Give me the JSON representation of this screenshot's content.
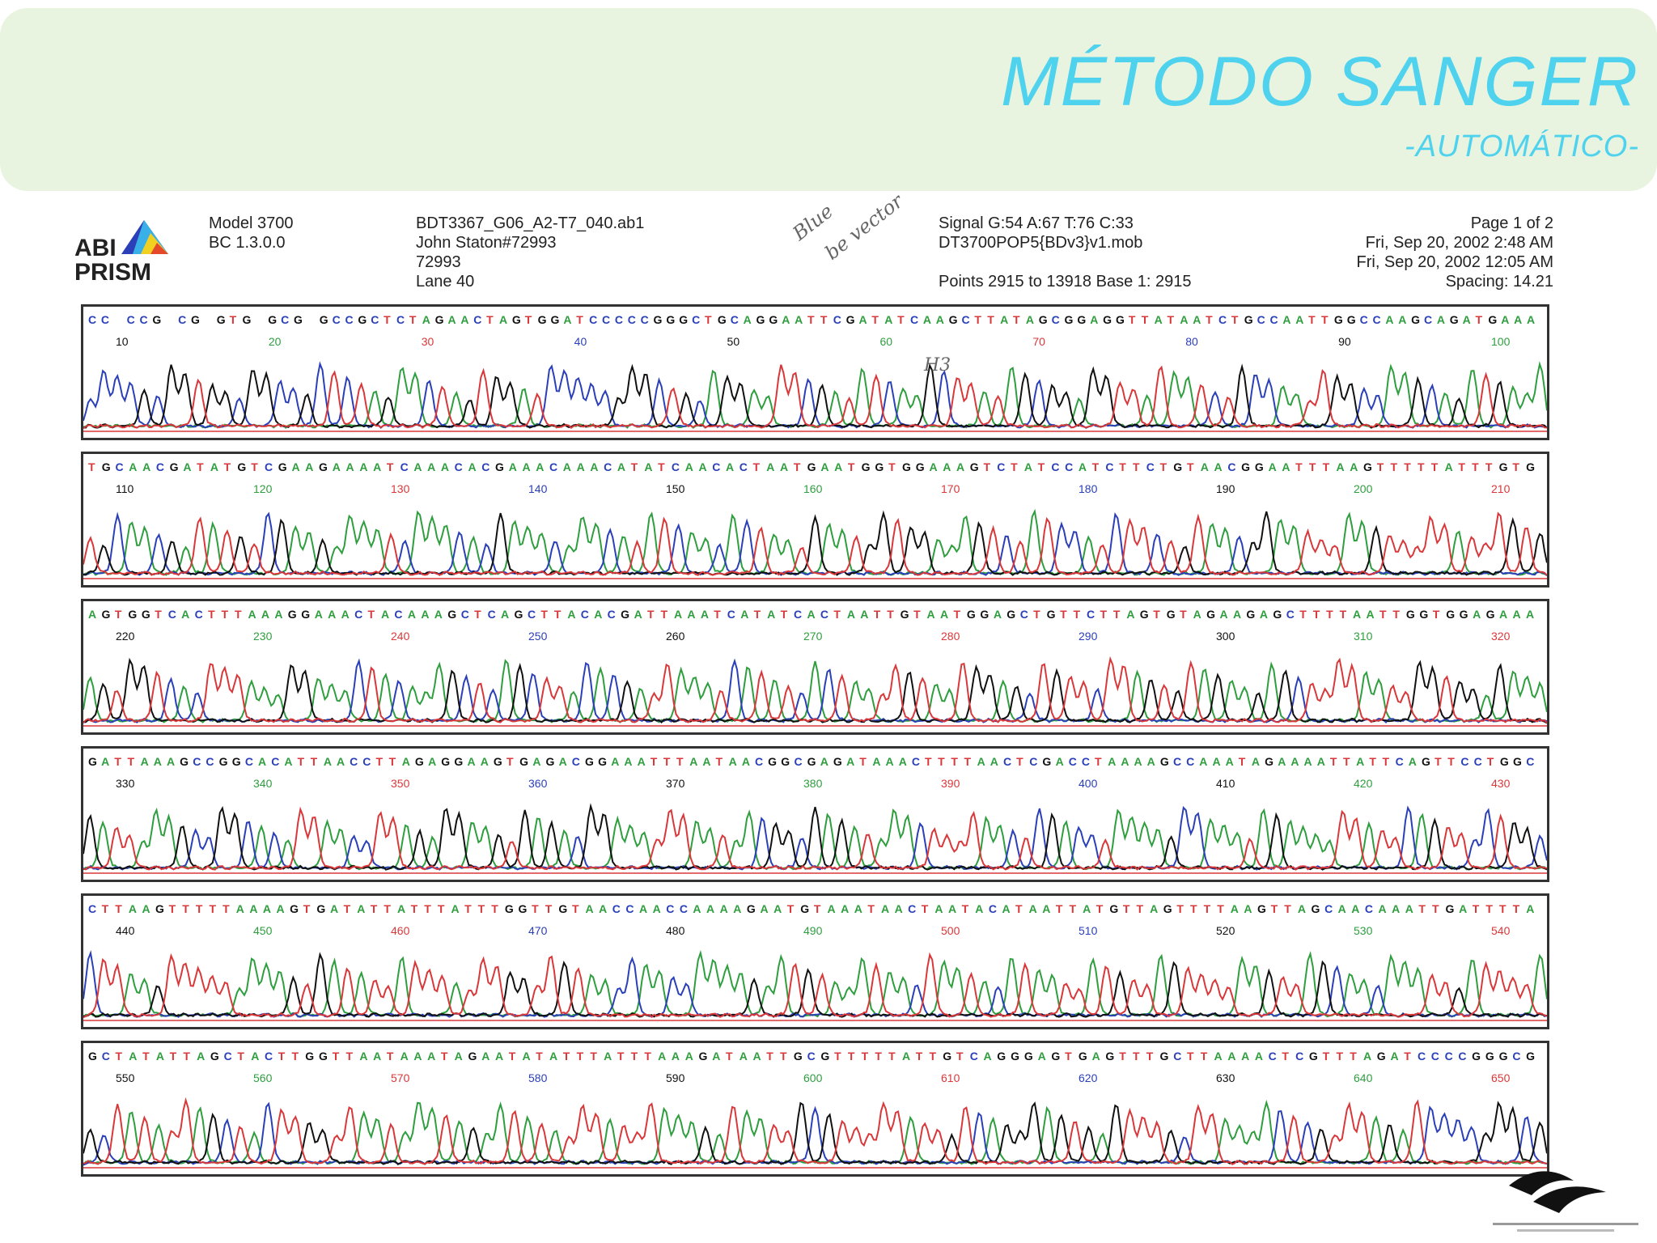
{
  "slide": {
    "title": "MÉTODO SANGER",
    "subtitle": "-AUTOMÁTICO-"
  },
  "report_header": {
    "logo_text": [
      "ABI",
      "PRISM"
    ],
    "instrument": [
      "Model 3700",
      "BC 1.3.0.0"
    ],
    "sample": [
      "BDT3367_G06_A2-T7_040.ab1",
      "John Staton#72993",
      "72993",
      "Lane 40"
    ],
    "signal": [
      "Signal G:54 A:67 T:76 C:33",
      "DT3700POP5{BDv3}v1.mob"
    ],
    "points": "Points 2915 to 13918   Base 1: 2915",
    "page_info": [
      "Page 1 of 2",
      "Fri, Sep 20, 2002  2:48 AM",
      "Fri, Sep 20, 2002  12:05 AM",
      "Spacing: 14.21"
    ],
    "annotation": [
      "Blue",
      "be vector"
    ],
    "annotation_mark": "H3"
  },
  "colors": {
    "A": "#2e9e3e",
    "C": "#2a3fb8",
    "G": "#111111",
    "T": "#d9383a",
    "title": "#4fd2ee",
    "banner": "#e8f4df"
  },
  "panels": [
    {
      "sequence": "CC CCG CG GTG GCG GCCGCTCTAGAACTAGTGGATCCCCCGGGCTGCAGGAATTCGATATCAAGCTTATAGCGGAGGTTATAATCTGCCAATTGGCCAAGCAGATGAAA",
      "ticks": [
        "10",
        "20",
        "30",
        "40",
        "50",
        "60",
        "70",
        "80",
        "90",
        "100"
      ]
    },
    {
      "sequence": "TGCAACGATATGTCGAAGAAAATCAAACACGAAACAAACATATCAACACTAATGAATGGTGGAAAGTCTATCCATCTTCTGTAACGGAATTTAAGTTTTTATTTGTG",
      "ticks": [
        "110",
        "120",
        "130",
        "140",
        "150",
        "160",
        "170",
        "180",
        "190",
        "200",
        "210"
      ]
    },
    {
      "sequence": "AGTGGTCACTTTAAAGGAAACTACAAAGCTCAGCTTACACGATTAAATCATATCACTAATTGTAATGGAGCTGTTCTTAGTGTAGAAGAGCTTTTAATTGGTGGAGAAA",
      "ticks": [
        "220",
        "230",
        "240",
        "250",
        "260",
        "270",
        "280",
        "290",
        "300",
        "310",
        "320"
      ]
    },
    {
      "sequence": "GATTAAAGCCGGCACATTAACCTTAGAGGAAGTGAGACGGAAATTTAATAACGGCGAGATAAACTTTTAACTCGACCTAAAAGCCAAATAGAAAATTATTCAGTTCCTGGC",
      "ticks": [
        "330",
        "340",
        "350",
        "360",
        "370",
        "380",
        "390",
        "400",
        "410",
        "420",
        "430"
      ]
    },
    {
      "sequence": "CTTAAGTTTTTAAAAGTGATATTATTTATTTGGTTGTAACCAACCAAAAGAATGTAAATAACTAATACATAATTATGTTAGTTTTAAGTTAGCAACAAATTGATTTTA",
      "ticks": [
        "440",
        "450",
        "460",
        "470",
        "480",
        "490",
        "500",
        "510",
        "520",
        "530",
        "540"
      ]
    },
    {
      "sequence": "GCTATATTAGCTACTTGGTTAATAAATAGAATATATTTATTTAAAGATAATTGCGTTTTTATTGTCAGGGAGTGAGTTTGCTTAAAACTCGTTTAGATCCCCGGGCG",
      "ticks": [
        "550",
        "560",
        "570",
        "580",
        "590",
        "600",
        "610",
        "620",
        "630",
        "640",
        "650"
      ]
    }
  ]
}
